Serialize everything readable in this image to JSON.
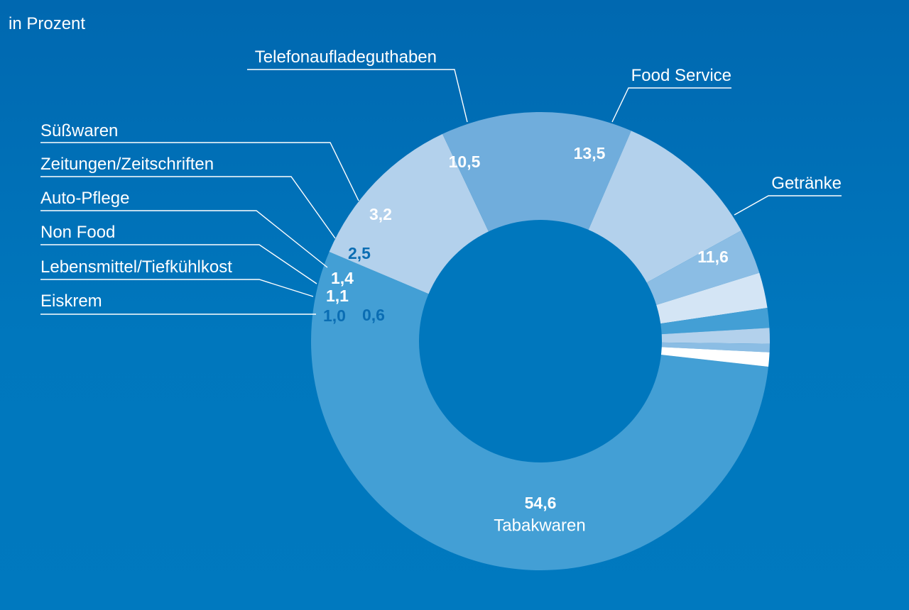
{
  "unit_label": "in Prozent",
  "chart_data": {
    "type": "pie",
    "subtype": "donut",
    "unit": "in Prozent",
    "slices": [
      {
        "label": "Tabakwaren",
        "value": 54.6,
        "value_label": "54,6",
        "color": "#439fd5"
      },
      {
        "label": "Getränke",
        "value": 11.6,
        "value_label": "11,6",
        "color": "#b3d1ec"
      },
      {
        "label": "Food Service",
        "value": 13.5,
        "value_label": "13,5",
        "color": "#70addc"
      },
      {
        "label": "Telefonaufladeguthaben",
        "value": 10.5,
        "value_label": "10,5",
        "color": "#b3d1ec"
      },
      {
        "label": "Süßwaren",
        "value": 3.2,
        "value_label": "3,2",
        "color": "#8bbde4"
      },
      {
        "label": "Zeitungen/Zeitschriften",
        "value": 2.5,
        "value_label": "2,5",
        "color": "#d4e5f5"
      },
      {
        "label": "Auto-Pflege",
        "value": 1.4,
        "value_label": "1,4",
        "color": "#439fd5"
      },
      {
        "label": "Non Food",
        "value": 1.1,
        "value_label": "1,1",
        "color": "#b3d1ec"
      },
      {
        "label": "Lebensmittel/Tiefkühlkost",
        "value": 0.6,
        "value_label": "0,6",
        "color": "#8bbde4"
      },
      {
        "label": "Eiskrem",
        "value": 1.0,
        "value_label": "1,0",
        "color": "#ffffff"
      }
    ],
    "value_label_colors": {
      "light": "#ffffff",
      "dark": "#0a6db3"
    },
    "background": "#0075bb",
    "hole_color": "#0077bd"
  }
}
